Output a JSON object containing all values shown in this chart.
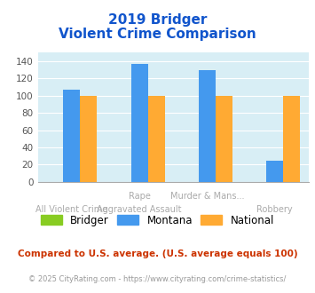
{
  "title_line1": "2019 Bridger",
  "title_line2": "Violent Crime Comparison",
  "cat_labels_row1": [
    "",
    "Rape",
    "Murder & Mans...",
    ""
  ],
  "cat_labels_row2": [
    "All Violent Crime",
    "Aggravated Assault",
    "",
    "Robbery"
  ],
  "bridger": [
    0,
    0,
    0,
    0
  ],
  "montana": [
    107,
    137,
    130,
    24
  ],
  "national": [
    100,
    100,
    100,
    100
  ],
  "bar_width": 0.25,
  "ylim": [
    0,
    150
  ],
  "yticks": [
    0,
    20,
    40,
    60,
    80,
    100,
    120,
    140
  ],
  "colors": {
    "bridger": "#88cc22",
    "montana": "#4499ee",
    "national": "#ffaa33"
  },
  "bg_color": "#d8eef5",
  "title_color": "#1155cc",
  "xlabel_color": "#aaaaaa",
  "legend_labels": [
    "Bridger",
    "Montana",
    "National"
  ],
  "footnote1": "Compared to U.S. average. (U.S. average equals 100)",
  "footnote2": "© 2025 CityRating.com - https://www.cityrating.com/crime-statistics/",
  "footnote1_color": "#cc3300",
  "footnote2_color": "#999999"
}
